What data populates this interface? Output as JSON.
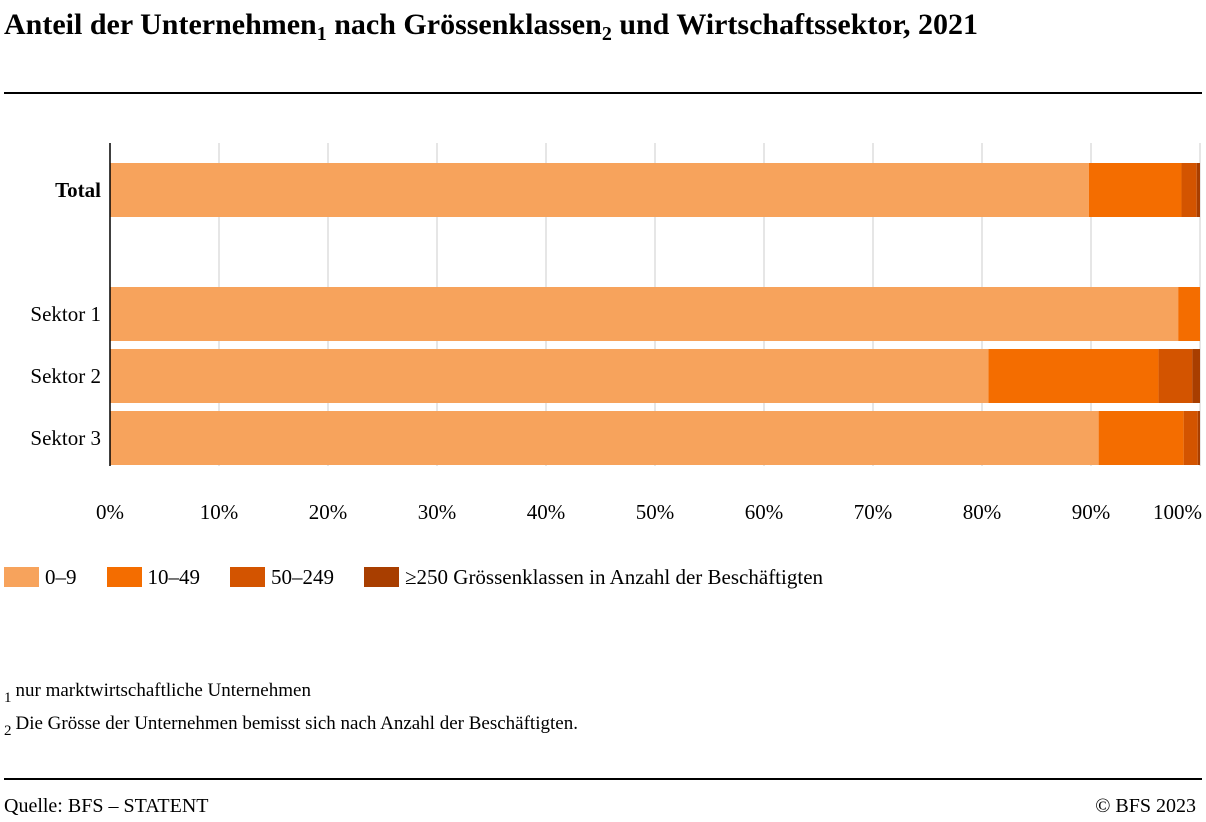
{
  "header": {
    "title_part1": "Anteil der Unternehmen",
    "title_sup1": "1",
    "title_part2": " nach Grössenklassen",
    "title_sup2": "2",
    "title_part3": " und Wirtschaftssektor, 2021"
  },
  "chart_data": {
    "type": "bar",
    "orientation": "horizontal",
    "stacked": true,
    "categories": [
      "Total",
      "Sektor 1",
      "Sektor 2",
      "Sektor 3"
    ],
    "category_bold": [
      true,
      false,
      false,
      false
    ],
    "series": [
      {
        "name": "0–9",
        "color": "#f7a35c",
        "values": [
          89.8,
          98.0,
          80.6,
          90.7
        ]
      },
      {
        "name": "10–49",
        "color": "#f46d00",
        "values": [
          8.5,
          2.0,
          15.6,
          7.8
        ]
      },
      {
        "name": "50–249",
        "color": "#d35400",
        "values": [
          1.4,
          0.0,
          3.1,
          1.3
        ]
      },
      {
        "name": "≥250",
        "color": "#a83e00",
        "values": [
          0.3,
          0.0,
          0.7,
          0.2
        ]
      }
    ],
    "x_ticks": [
      "0%",
      "10%",
      "20%",
      "30%",
      "40%",
      "50%",
      "60%",
      "70%",
      "80%",
      "90%",
      "100%"
    ],
    "xlim": [
      0,
      100
    ],
    "grid": true,
    "legend_title": "Grössenklassen in Anzahl der Beschäftigten",
    "legend_position": "bottom-left"
  },
  "footnotes": [
    {
      "num": "1",
      "text": "nur marktwirtschaftliche Unternehmen"
    },
    {
      "num": "2",
      "text": "Die Grösse der Unternehmen bemisst sich nach Anzahl der Beschäftigten."
    }
  ],
  "footer": {
    "source": "Quelle: BFS – STATENT",
    "copyright": "© BFS 2023"
  }
}
